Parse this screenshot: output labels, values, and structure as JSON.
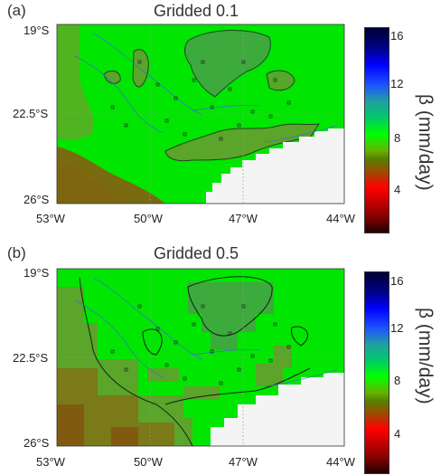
{
  "panels": [
    {
      "label": "(a)",
      "title": "Gridded 0.1",
      "y_ticks": [
        "19°S",
        "22.5°S",
        "26°S"
      ],
      "x_ticks": [
        "53°W",
        "50°W",
        "47°W",
        "44°W"
      ]
    },
    {
      "label": "(b)",
      "title": "Gridded 0.5",
      "y_ticks": [
        "19°S",
        "22.5°S",
        "26°S"
      ],
      "x_ticks": [
        "53°W",
        "50°W",
        "47°W",
        "44°W"
      ]
    }
  ],
  "colorbar": {
    "title": "β (mm/day)",
    "ticks": [
      "16",
      "12",
      "8",
      "4"
    ],
    "colors": [
      "#000033",
      "#000066",
      "#000099",
      "#0000cc",
      "#0000ff",
      "#1e55ff",
      "#1f8fb0",
      "#20b080",
      "#00cc66",
      "#00ff00",
      "#66b300",
      "#558000",
      "#994d00",
      "#b32d00",
      "#ff0000",
      "#cc0000",
      "#990000",
      "#660000",
      "#330000"
    ]
  },
  "colors": {
    "land_green": "#00e600",
    "dark_green": "#3caa3c",
    "olive": "#6b8a22",
    "brown": "#7a6a10",
    "sea": "#f4f4f4"
  }
}
